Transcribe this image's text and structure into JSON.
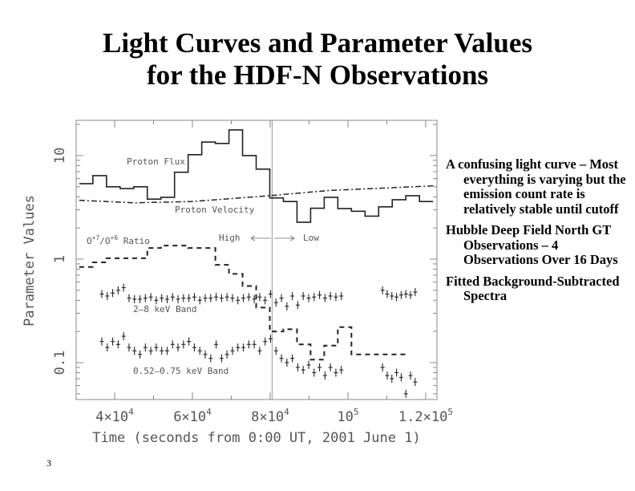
{
  "title": {
    "line1": "Light Curves and Parameter Values",
    "line2": "for the HDF-N Observations"
  },
  "bullets": [
    "A confusing light curve – Most everything is varying but the emission count rate is relatively stable until cutoff",
    "Hubble Deep Field North GT Observations – 4 Observations Over 16 Days",
    "Fitted Background-Subtracted Spectra"
  ],
  "slide_number": "3",
  "chart_data": {
    "type": "line",
    "title": "",
    "xlabel": "Time (seconds from 0:00 UT, 2001 June 1)",
    "ylabel": "Parameter Values",
    "xlim": [
      30100,
      122900
    ],
    "ylim": [
      0.044,
      21.9
    ],
    "yscale": "log",
    "x_ticks": [
      {
        "value": 40000,
        "mant": "4×10",
        "exp": "4"
      },
      {
        "value": 60000,
        "mant": "6×10",
        "exp": "4"
      },
      {
        "value": 80000,
        "mant": "8×10",
        "exp": "4"
      },
      {
        "value": 100000,
        "mant": "10",
        "exp": "5"
      },
      {
        "value": 120000,
        "mant": "1.2×10",
        "exp": "5"
      }
    ],
    "y_ticks": [
      {
        "value": 10,
        "label": "10"
      },
      {
        "value": 1,
        "label": "1"
      },
      {
        "value": 0.1,
        "label": "0.1"
      }
    ],
    "divider_x": 80500,
    "annotations": {
      "proton_flux": "Proton Flux",
      "proton_velocity": "Proton Velocity",
      "ratio_o": "O",
      "ratio_sup1": "+7",
      "ratio_mid": "/O",
      "ratio_sup2": "+6",
      "ratio_end": " Ratio",
      "high": "High",
      "low": "Low",
      "hard_band": "2–8 keV Band",
      "soft_band": "0.52–0.75 keV Band"
    },
    "bin_start": 30900,
    "bin_width": 3500,
    "series": [
      {
        "name": "Proton Flux",
        "style": "solid-step",
        "values": [
          5.35,
          6.4,
          5.0,
          4.8,
          5.0,
          3.8,
          3.95,
          6.9,
          10.2,
          13.5,
          13.1,
          17.7,
          10,
          7.4,
          3.9,
          3.6,
          2.27,
          3.1,
          3.95,
          3.08,
          2.9,
          2.6,
          3.2,
          3.75,
          4.1,
          3.6
        ]
      },
      {
        "name": "O+7/O+6 Ratio",
        "style": "dashed-step",
        "values": [
          0.84,
          0.93,
          1.02,
          1.02,
          1.02,
          1.28,
          1.35,
          1.35,
          1.28,
          1.28,
          0.88,
          0.72,
          0.55,
          0.34,
          0.2,
          0.21,
          0.15,
          0.107,
          0.146,
          0.22,
          0.12,
          0.12,
          0.12,
          0.12,
          null,
          null
        ]
      },
      {
        "name": "Proton Velocity",
        "style": "dash-dot",
        "x": [
          30900,
          45000,
          60000,
          80000,
          95000,
          122000
        ],
        "values": [
          3.7,
          3.5,
          3.6,
          4.1,
          4.6,
          5.1
        ]
      },
      {
        "name": "2-8 keV Band",
        "style": "errorbar",
        "x_start": 36700,
        "x_step": 1400,
        "values": [
          0.46,
          0.44,
          0.47,
          0.5,
          0.53,
          0.42,
          0.41,
          0.41,
          0.42,
          0.43,
          0.4,
          0.42,
          0.41,
          0.43,
          0.41,
          0.42,
          0.42,
          0.43,
          0.4,
          0.42,
          0.42,
          0.43,
          0.42,
          0.43,
          0.42,
          0.4,
          0.42,
          0.43,
          0.41,
          0.43,
          0.4,
          0.46,
          0.38,
          0.42,
          0.35,
          0.44,
          0.36,
          0.44,
          0.42,
          0.43,
          0.45,
          0.42,
          0.44,
          0.43,
          0.44
        ],
        "x_start2": 108900,
        "x_step2": 1200,
        "values2": [
          0.5,
          0.46,
          0.44,
          0.43,
          0.45,
          0.46,
          0.45,
          0.48
        ]
      },
      {
        "name": "0.52-0.75 keV Band",
        "style": "errorbar",
        "x_start": 36700,
        "x_step": 1400,
        "values": [
          0.16,
          0.14,
          0.16,
          0.15,
          0.18,
          0.14,
          0.13,
          0.12,
          0.14,
          0.13,
          0.14,
          0.13,
          0.13,
          0.15,
          0.14,
          0.15,
          0.16,
          0.14,
          0.13,
          0.12,
          0.11,
          0.15,
          0.11,
          0.12,
          0.13,
          0.14,
          0.14,
          0.15,
          0.15,
          0.13,
          0.16,
          0.17,
          0.13,
          0.11,
          0.1,
          0.11,
          0.09,
          0.085,
          0.095,
          0.08,
          0.09,
          0.075,
          0.09,
          0.08,
          0.085
        ],
        "x_start2": 108900,
        "x_step2": 1200,
        "values2": [
          0.09,
          0.075,
          0.07,
          0.08,
          0.072,
          0.05,
          0.075,
          0.065
        ]
      }
    ]
  }
}
